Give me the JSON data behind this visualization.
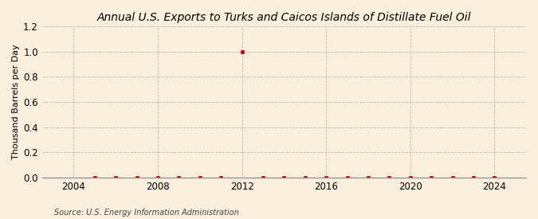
{
  "title": "Annual U.S. Exports to Turks and Caicos Islands of Distillate Fuel Oil",
  "ylabel": "Thousand Barrels per Day",
  "source": "Source: U.S. Energy Information Administration",
  "background_color": "#faeedd",
  "xlim": [
    2002.5,
    2025.5
  ],
  "ylim": [
    0.0,
    1.2
  ],
  "yticks": [
    0.0,
    0.2,
    0.4,
    0.6,
    0.8,
    1.0,
    1.2
  ],
  "xticks": [
    2004,
    2008,
    2012,
    2016,
    2020,
    2024
  ],
  "data_years": [
    2005,
    2006,
    2007,
    2008,
    2009,
    2010,
    2011,
    2012,
    2013,
    2014,
    2015,
    2016,
    2017,
    2018,
    2019,
    2020,
    2021,
    2022,
    2023,
    2024
  ],
  "data_values": [
    0,
    0,
    0,
    0,
    0,
    0,
    0,
    1.0,
    0,
    0,
    0,
    0,
    0,
    0,
    0,
    0,
    0,
    0,
    0,
    0
  ],
  "marker_color": "#cc0000",
  "marker_style": "s",
  "marker_size": 2.5,
  "grid_color": "#bbbbbb",
  "grid_style": "--",
  "title_fontsize": 10,
  "label_fontsize": 8,
  "tick_fontsize": 8.5,
  "source_fontsize": 7
}
